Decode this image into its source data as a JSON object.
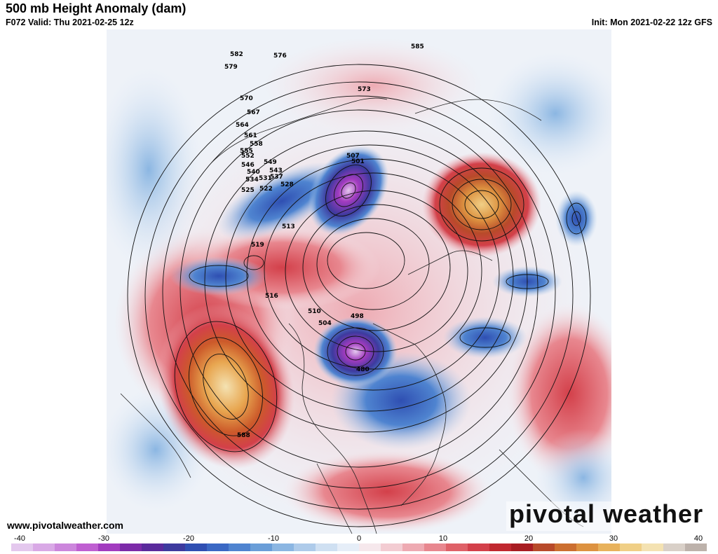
{
  "header": {
    "title": "500 mb Height Anomaly (dam)",
    "valid": "F072 Valid: Thu 2021-02-25 12z",
    "init": "Init: Mon 2021-02-22 12z GFS"
  },
  "footer": {
    "website": "www.pivotalweather.com",
    "brand": "pivotal weather"
  },
  "colorbar": {
    "ticks": [
      "-40",
      "-30",
      "-20",
      "-10",
      "0",
      "10",
      "20",
      "30",
      "40"
    ],
    "colors": [
      "#e4c8ee",
      "#d9a9e6",
      "#cc86dc",
      "#bf5fd1",
      "#a23bbf",
      "#7c2aa8",
      "#5a2a9c",
      "#3d3a9e",
      "#2f4fb2",
      "#3a68c4",
      "#4f84d0",
      "#6a9ed8",
      "#8bb6e2",
      "#aecbea",
      "#cfe0f2",
      "#e6eef8",
      "#f6e8ec",
      "#f3ccd2",
      "#eeaab2",
      "#e8878f",
      "#df6168",
      "#d3404a",
      "#c0282f",
      "#a81d22",
      "#b84a2a",
      "#cc6f30",
      "#dd9240",
      "#e8b25c",
      "#f0cf86",
      "#f4e2b2",
      "#d9d0c8",
      "#bdb2ab"
    ]
  },
  "map": {
    "contour_labels": [
      "585",
      "582",
      "576",
      "579",
      "573",
      "570",
      "567",
      "564",
      "561",
      "558",
      "555",
      "552",
      "549",
      "546",
      "543",
      "540",
      "537",
      "534",
      "531",
      "528",
      "525",
      "522",
      "519",
      "516",
      "513",
      "510",
      "507",
      "504",
      "501",
      "498",
      "480",
      "588"
    ]
  }
}
